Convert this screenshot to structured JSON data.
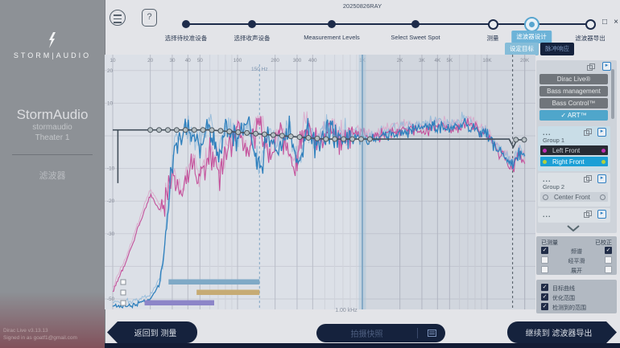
{
  "window": {
    "title": "20250826RAY",
    "controls": {
      "minimize": "–",
      "maximize": "□",
      "close": "×"
    }
  },
  "sidebar": {
    "brand": "STORM|AUDIO",
    "product": "StormAudio",
    "device": "stormaudio",
    "theater": "Theater 1",
    "section": "滤波器",
    "version": "Dirac Live v3.13.13",
    "signed_in": "Signed in as goatf1@gmail.com"
  },
  "toolbar": {
    "help_label": "?"
  },
  "stepper": {
    "steps": [
      {
        "label": "选择待校准设备",
        "state": "done"
      },
      {
        "label": "选择收声设备",
        "state": "done"
      },
      {
        "label": "Measurement Levels",
        "state": "done"
      },
      {
        "label": "Select Sweet Spot",
        "state": "done"
      },
      {
        "label": "测量",
        "state": "todo"
      },
      {
        "label": "滤波器设计",
        "state": "current"
      },
      {
        "label": "滤波器导出",
        "state": "todo"
      }
    ],
    "sub_tabs": [
      {
        "label": "设定目标",
        "active": true
      },
      {
        "label": "脉冲响应",
        "active": false
      }
    ]
  },
  "chart_data": {
    "type": "line",
    "x_axis": {
      "scale": "log",
      "unit": "Hz",
      "min": 10,
      "max": 21000,
      "ticks": [
        10,
        20,
        30,
        40,
        50,
        100,
        200,
        300,
        400,
        1000,
        2000,
        3000,
        4000,
        5000,
        10000,
        20000
      ],
      "tick_labels": [
        "10",
        "20",
        "30",
        "40",
        "50",
        "100",
        "200",
        "300",
        "400",
        "1K",
        "2K",
        "3K",
        "4K",
        "5K",
        "10K",
        "20K"
      ]
    },
    "y_axis": {
      "unit": "dB",
      "min": -53,
      "max": 25,
      "grid_step": 10,
      "tick_labels_shown": [
        20,
        10,
        -10,
        -20,
        -30,
        -50
      ]
    },
    "cursor": {
      "label": "1.00 kHz",
      "hz": 1000
    },
    "freq_marker": {
      "label": "150 Hz",
      "hz": 150
    },
    "hf_marker_hz": 16000,
    "target_curve": {
      "color": "#434f5b",
      "highpass_hz": 11,
      "points": [
        [
          10,
          1.8
        ],
        [
          60,
          1.8
        ],
        [
          100,
          1.1
        ],
        [
          150,
          0.55
        ],
        [
          200,
          0.2
        ],
        [
          300,
          -0.35
        ],
        [
          400,
          -0.75
        ],
        [
          500,
          -1
        ],
        [
          15000,
          -1
        ],
        [
          16200,
          -3.5
        ],
        [
          17300,
          -1.2
        ],
        [
          20000,
          -1.2
        ]
      ],
      "control_points": {
        "from_hz": 20,
        "to_hz": 1150,
        "count": 26,
        "extra": [
          [
            17000,
            -1.2
          ],
          [
            19800,
            -1.2
          ]
        ]
      }
    },
    "series": [
      {
        "name": "measured-left-front",
        "color": "#c4509b",
        "width": 1.1,
        "seed": 7,
        "keypoints": [
          [
            10,
            -48
          ],
          [
            13,
            -38
          ],
          [
            16,
            -28
          ],
          [
            20,
            -18
          ],
          [
            25,
            -24
          ],
          [
            30,
            -12
          ],
          [
            36,
            -18
          ],
          [
            42,
            -8
          ],
          [
            50,
            -14
          ],
          [
            60,
            -5
          ],
          [
            72,
            -12
          ],
          [
            85,
            -3
          ],
          [
            100,
            2
          ],
          [
            120,
            -6
          ],
          [
            150,
            4
          ],
          [
            180,
            -8
          ],
          [
            220,
            2
          ],
          [
            280,
            -10
          ],
          [
            350,
            3
          ],
          [
            450,
            -3
          ],
          [
            550,
            2
          ],
          [
            700,
            -2
          ],
          [
            900,
            1
          ],
          [
            1200,
            -1
          ],
          [
            1600,
            1
          ],
          [
            2200,
            2
          ],
          [
            3000,
            1
          ],
          [
            4000,
            3
          ],
          [
            5000,
            2
          ],
          [
            7000,
            4
          ],
          [
            9000,
            1
          ],
          [
            11000,
            -2
          ],
          [
            13000,
            -6
          ],
          [
            16000,
            -10
          ],
          [
            18000,
            -5
          ],
          [
            20000,
            -8
          ]
        ]
      },
      {
        "name": "measured-right-front",
        "color": "#2f80bd",
        "width": 1.3,
        "seed": 3,
        "keypoints": [
          [
            14,
            -52
          ],
          [
            20,
            -50
          ],
          [
            24,
            -45
          ],
          [
            27,
            -30
          ],
          [
            30,
            -8
          ],
          [
            35,
            0
          ],
          [
            40,
            2
          ],
          [
            50,
            -3
          ],
          [
            60,
            3
          ],
          [
            70,
            -8
          ],
          [
            80,
            2
          ],
          [
            100,
            -3
          ],
          [
            120,
            3
          ],
          [
            150,
            -12
          ],
          [
            175,
            1
          ],
          [
            210,
            -5
          ],
          [
            260,
            2
          ],
          [
            310,
            -10
          ],
          [
            360,
            2
          ],
          [
            430,
            -3
          ],
          [
            520,
            2
          ],
          [
            640,
            -2
          ],
          [
            800,
            1
          ],
          [
            1000,
            -1
          ],
          [
            1400,
            0
          ],
          [
            2000,
            1
          ],
          [
            2800,
            2
          ],
          [
            3800,
            3
          ],
          [
            5000,
            2
          ],
          [
            6500,
            4
          ],
          [
            8000,
            2
          ],
          [
            10000,
            0
          ],
          [
            12000,
            -4
          ],
          [
            14000,
            -7
          ],
          [
            16000,
            -9
          ],
          [
            18000,
            -5
          ],
          [
            20000,
            -7
          ]
        ]
      },
      {
        "name": "measured-left-front-alt",
        "color": "#d9a6c9",
        "width": 1.0,
        "seed": 11,
        "offset": 1.5,
        "use": "measured-left-front"
      },
      {
        "name": "measured-right-front-alt",
        "color": "#8fb9d9",
        "width": 1.0,
        "seed": 13,
        "offset": 1.3,
        "use": "measured-right-front"
      }
    ],
    "range_bars": [
      {
        "color": "#7fa9c6",
        "from_hz": 28,
        "to_hz": 150,
        "checked": false
      },
      {
        "color": "#c6ab74",
        "from_hz": 47,
        "to_hz": 150,
        "checked": false
      },
      {
        "color": "#8c85c8",
        "from_hz": 18,
        "to_hz": 65,
        "checked": false
      }
    ]
  },
  "footer": {
    "back": "返回到 测量",
    "snapshot": "拍摄快照",
    "continue": "继续到 滤波器导出"
  },
  "right_panel": {
    "modes": [
      {
        "label": "Dirac Live®",
        "active": false
      },
      {
        "label": "Bass management",
        "active": false
      },
      {
        "label": "Bass Control™",
        "active": false
      },
      {
        "label": "ART™",
        "active": true,
        "check": "✓"
      }
    ],
    "groups": [
      {
        "name": "Group 1",
        "tint": "#c9dde7",
        "channels": [
          {
            "name": "Left Front",
            "dot": "#c02fb4",
            "style": "dark"
          },
          {
            "name": "Right Front",
            "dot": "#b5d13a",
            "style": "selected"
          }
        ]
      },
      {
        "name": "Group 2",
        "tint": "#dbe0e5",
        "channels": [
          {
            "name": "Center Front",
            "dot": "hollow",
            "style": "light"
          }
        ]
      },
      {
        "name": "",
        "tint": "#dbe0e5",
        "channels": []
      }
    ],
    "matrix": {
      "left_header": "已测量",
      "right_header": "已校正",
      "rows": [
        {
          "label": "频谱",
          "left": true,
          "right": true
        },
        {
          "label": "经平滑",
          "left": false,
          "right": false
        },
        {
          "label": "展开",
          "left": false,
          "right": false
        }
      ]
    },
    "overlays": [
      {
        "label": "目标曲线",
        "checked": true
      },
      {
        "label": "优化范围",
        "checked": true
      },
      {
        "label": "检测到的范围",
        "checked": true
      }
    ]
  }
}
